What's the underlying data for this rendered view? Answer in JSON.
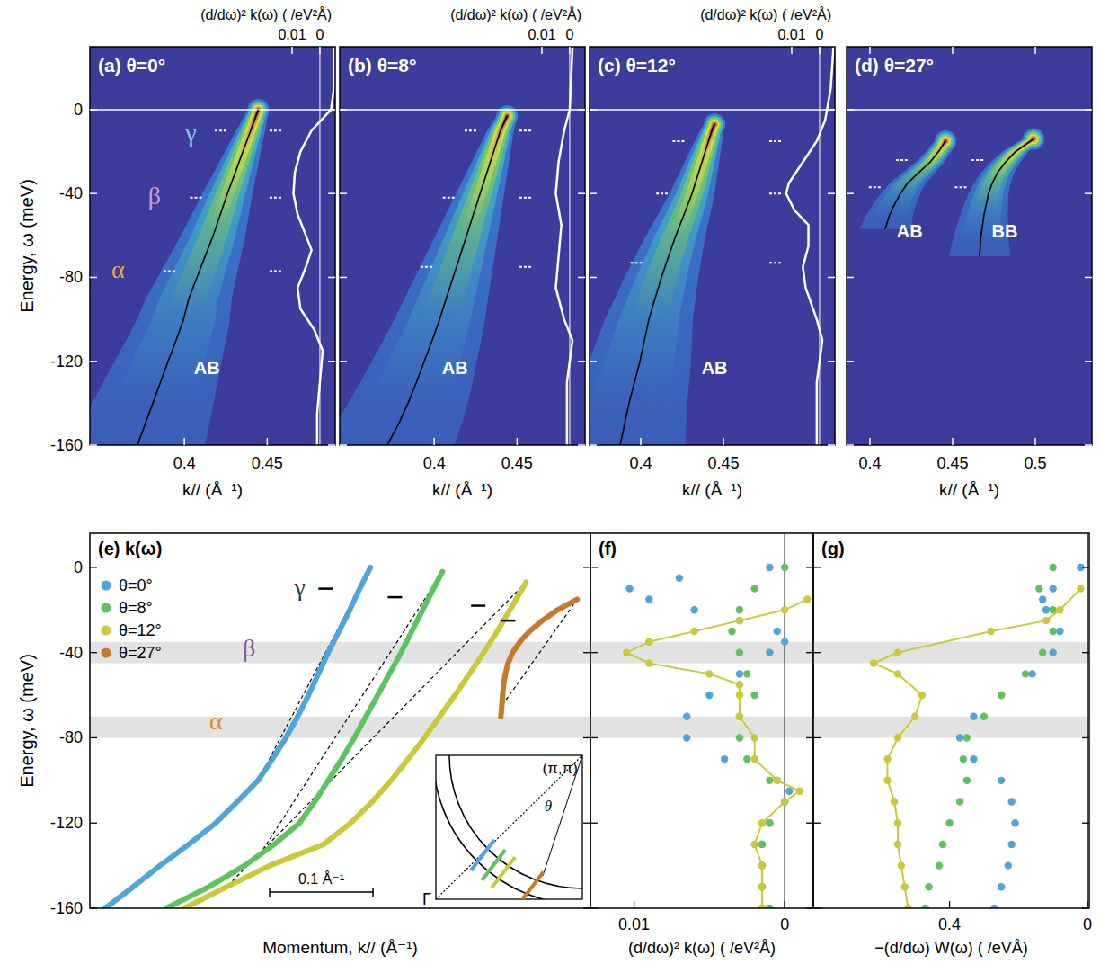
{
  "chart_data": [
    {
      "type": "heatmap",
      "title": "(a)  θ=0°",
      "x_label": "k// (Å⁻¹)",
      "y_label": "Energy, ω (meV)",
      "x2_label": "(d/dω)² k(ω)  ( /eV²Å)",
      "xlim": [
        0.343,
        0.491
      ],
      "xticks": [
        0.4,
        0.45
      ],
      "ylim": [
        -160,
        30
      ],
      "yticks": [
        0,
        -40,
        -80,
        -120,
        -160
      ],
      "x2lim": [
        0.0826,
        -0.0055
      ],
      "x2ticks": [
        0.01,
        0
      ],
      "dash_energies": [
        -10,
        -42,
        -77
      ],
      "series": [
        {
          "type": "line",
          "color": "#000000",
          "x": [
            0.4446,
            0.44,
            0.4353,
            0.4307,
            0.426,
            0.4217,
            0.4174,
            0.4125,
            0.4076,
            0.4027,
            0.3995,
            0.395,
            0.3902,
            0.3856,
            0.381,
            0.3763,
            0.3717
          ],
          "values": [
            0,
            -10,
            -20,
            -30,
            -40,
            -50,
            -60,
            -70,
            -80,
            -90,
            -100,
            -110,
            -120,
            -130,
            -140,
            -150,
            -160
          ]
        },
        {
          "type": "line",
          "axis": "x2",
          "color": "#ffffff",
          "x": [
            -0.005,
            -0.005,
            -0.004,
            0.003,
            0.007,
            0.009,
            0.0095,
            0.008,
            0.005,
            0.003,
            0.005,
            0.008,
            0.007,
            0.002,
            -0.001,
            0.0,
            0.001,
            0.001
          ],
          "values": [
            30,
            10,
            0,
            -10,
            -20,
            -30,
            -40,
            -50,
            -60,
            -67,
            -75,
            -85,
            -95,
            -105,
            -115,
            -130,
            -145,
            -160
          ]
        }
      ],
      "annotations": [
        {
          "text": "γ",
          "x": 0.404,
          "y": -11,
          "color": "#8fc5e6"
        },
        {
          "text": "β",
          "x": 0.382,
          "y": -41,
          "color": "#c7a0dc"
        },
        {
          "text": "α",
          "x": 0.36,
          "y": -76,
          "color": "#e8a73c"
        },
        {
          "text": "AB",
          "x": 0.4136,
          "y": -123,
          "color": "#ffffff"
        }
      ]
    },
    {
      "type": "heatmap",
      "title": "(b)  θ=8°",
      "x_label": "k// (Å⁻¹)",
      "x2_label": "(d/dω)² k(ω)  ( /eV²Å)",
      "tick_labels": "x",
      "xlim": [
        0.343,
        0.491
      ],
      "xticks": [
        0.4,
        0.45
      ],
      "ylim": [
        -160,
        30
      ],
      "yticks": [
        0,
        -40,
        -80,
        -120,
        -160
      ],
      "x2lim": [
        0.0826,
        -0.0055
      ],
      "x2ticks": [
        0.01,
        0
      ],
      "dash_energies": [
        -10,
        -42,
        -75
      ],
      "series": [
        {
          "type": "line",
          "color": "#000000",
          "x": [
            0.444,
            0.44,
            0.4359,
            0.4318,
            0.4277,
            0.4236,
            0.4196,
            0.4155,
            0.4114,
            0.4073,
            0.4033,
            0.3988,
            0.394,
            0.3893,
            0.3842,
            0.3785,
            0.3717
          ],
          "values": [
            -3,
            -10,
            -20,
            -30,
            -40,
            -50,
            -60,
            -70,
            -80,
            -90,
            -100,
            -110,
            -120,
            -130,
            -140,
            -150,
            -160
          ]
        },
        {
          "type": "line",
          "axis": "x2",
          "color": "#ffffff",
          "x": [
            -0.001,
            0.0,
            0.002,
            0.004,
            0.005,
            0.003,
            0.004,
            0.005,
            0.002,
            -0.001,
            0.001,
            0.001
          ],
          "values": [
            30,
            0,
            -10,
            -25,
            -40,
            -55,
            -70,
            -85,
            -100,
            -110,
            -130,
            -160
          ]
        }
      ],
      "annotations": [
        {
          "text": "AB",
          "x": 0.4125,
          "y": -123,
          "color": "#ffffff"
        }
      ]
    },
    {
      "type": "heatmap",
      "title": "(c)  θ=12°",
      "x_label": "k// (Å⁻¹)",
      "x2_label": "(d/dω)² k(ω)  ( /eV²Å)",
      "tick_labels": "x",
      "xlim": [
        0.369,
        0.5174
      ],
      "xticks": [
        0.4,
        0.45
      ],
      "ylim": [
        -160,
        30
      ],
      "yticks": [
        0,
        -40,
        -80,
        -120,
        -160
      ],
      "x2lim": [
        0.0826,
        -0.0055
      ],
      "x2ticks": [
        0.01,
        0
      ],
      "dash_energies": [
        -15,
        -40,
        -73
      ],
      "series": [
        {
          "type": "line",
          "color": "#000000",
          "x": [
            0.4446,
            0.443,
            0.439,
            0.435,
            0.431,
            0.4262,
            0.4212,
            0.4168,
            0.4125,
            0.4087,
            0.4049,
            0.4022,
            0.3995,
            0.3962,
            0.3929,
            0.3902,
            0.3875
          ],
          "values": [
            -7,
            -10,
            -20,
            -30,
            -40,
            -50,
            -60,
            -70,
            -80,
            -90,
            -100,
            -110,
            -120,
            -130,
            -140,
            -150,
            -160
          ]
        },
        {
          "type": "line",
          "axis": "x2",
          "color": "#ffffff",
          "x": [
            -0.005,
            -0.004,
            -0.002,
            0.001,
            0.006,
            0.011,
            0.012,
            0.009,
            0.004,
            0.004,
            0.006,
            0.005,
            0.001,
            -0.001,
            0.001,
            0.001
          ],
          "values": [
            30,
            10,
            -5,
            -15,
            -25,
            -35,
            -40,
            -48,
            -55,
            -65,
            -75,
            -85,
            -100,
            -110,
            -130,
            -160
          ]
        }
      ],
      "annotations": [
        {
          "text": "AB",
          "x": 0.4446,
          "y": -123,
          "color": "#ffffff"
        }
      ]
    },
    {
      "type": "heatmap",
      "title": "(d)  θ=27°",
      "x_label": "k// (Å⁻¹)",
      "tick_labels": "x",
      "xlim": [
        0.3859,
        0.5342
      ],
      "xticks": [
        0.4,
        0.45,
        0.5
      ],
      "ylim": [
        -160,
        30
      ],
      "yticks": [
        0,
        -40,
        -80,
        -120,
        -160
      ],
      "dash_energies": [
        -24,
        -37
      ],
      "series": [
        {
          "type": "line",
          "color": "#000000",
          "x": [
            0.4457,
            0.4415,
            0.4364,
            0.4296,
            0.4228,
            0.4185,
            0.415,
            0.412,
            0.41,
            0.409
          ],
          "values": [
            -15,
            -20,
            -25,
            -30,
            -35,
            -40,
            -45,
            -50,
            -55,
            -57
          ]
        },
        {
          "type": "line",
          "color": "#000000",
          "x": [
            0.4989,
            0.488,
            0.482,
            0.4772,
            0.474,
            0.4717,
            0.469,
            0.4672,
            0.4663
          ],
          "values": [
            -14,
            -20,
            -25,
            -30,
            -35,
            -40,
            -50,
            -60,
            -70
          ]
        }
      ],
      "annotations": [
        {
          "text": "AB",
          "x": 0.424,
          "y": -58,
          "color": "#ffffff"
        },
        {
          "text": "BB",
          "x": 0.4815,
          "y": -58,
          "color": "#ffffff"
        }
      ]
    },
    {
      "type": "line",
      "title": "(e)  k(ω)",
      "x_label": "Momentum, k// (Å⁻¹)",
      "y_label": "Energy, ω (meV)",
      "tick_labels": "y",
      "legend": "upper left",
      "xlim": [
        0,
        0.484
      ],
      "ylim": [
        -160,
        16
      ],
      "yticks": [
        0,
        -40,
        -80,
        -120,
        -160
      ],
      "shaded_bands": [
        [
          -35,
          -45
        ],
        [
          -70,
          -80
        ]
      ],
      "series": [
        {
          "name": "θ=0°",
          "color": "#4ea5dc",
          "linear_to": -100,
          "gamma_marker": -10,
          "x": [
            0.2713,
            0.2609,
            0.2513,
            0.2409,
            0.2304,
            0.2209,
            0.2113,
            0.2009,
            0.1896,
            0.1765,
            0.1626,
            0.1426,
            0.1217,
            0.0957,
            0.0678,
            0.0417,
            0.0148
          ],
          "values": [
            0,
            -10,
            -20,
            -30,
            -40,
            -50,
            -60,
            -70,
            -80,
            -90,
            -100,
            -110,
            -120,
            -130,
            -140,
            -150,
            -160
          ]
        },
        {
          "name": "θ=8°",
          "color": "#5ec25e",
          "linear_to": -135,
          "gamma_marker": -14,
          "x": [
            0.3409,
            0.3322,
            0.3217,
            0.3113,
            0.3009,
            0.2896,
            0.2783,
            0.267,
            0.2557,
            0.2435,
            0.2304,
            0.2174,
            0.2026,
            0.1783,
            0.1496,
            0.1148,
            0.0739
          ],
          "values": [
            -2,
            -10,
            -20,
            -30,
            -40,
            -50,
            -60,
            -70,
            -80,
            -90,
            -100,
            -110,
            -120,
            -130,
            -140,
            -150,
            -160
          ]
        },
        {
          "name": "θ=12°",
          "color": "#c9c93a",
          "linear_to": -150,
          "gamma_marker": -18,
          "x": [
            0.4217,
            0.4183,
            0.4061,
            0.3939,
            0.3809,
            0.367,
            0.353,
            0.3383,
            0.3235,
            0.3078,
            0.2913,
            0.273,
            0.2522,
            0.2261,
            0.1739,
            0.1322,
            0.0913
          ],
          "values": [
            -7,
            -10,
            -20,
            -30,
            -40,
            -50,
            -60,
            -70,
            -80,
            -90,
            -100,
            -110,
            -120,
            -130,
            -140,
            -150,
            -160
          ]
        },
        {
          "name": "θ=27°",
          "color": "#c8782a",
          "linear_to": -65,
          "gamma_marker": -25,
          "x": [
            0.4713,
            0.4522,
            0.4374,
            0.4252,
            0.4157,
            0.4087,
            0.4043,
            0.4017,
            0.4,
            0.3991,
            0.3983,
            0.3974
          ],
          "values": [
            -15,
            -20,
            -25,
            -30,
            -35,
            -40,
            -45,
            -50,
            -55,
            -60,
            -65,
            -70
          ]
        }
      ],
      "annotations": [
        {
          "text": "γ",
          "x": 0.203,
          "y": -9,
          "color": "#23405e"
        },
        {
          "text": "β",
          "x": 0.154,
          "y": -38,
          "color": "#8a5aa6"
        },
        {
          "text": "α",
          "x": 0.122,
          "y": -72,
          "color": "#d0922a"
        }
      ],
      "scale_bar": {
        "value": 0.1,
        "label": "0.1 Å⁻¹"
      },
      "inset": {
        "labels": [
          "(π,π)",
          "θ",
          "Γ"
        ]
      }
    },
    {
      "type": "scatter",
      "title": "(f)",
      "x_label": "(d/dω)² k(ω)  ( /eV²Å)",
      "tick_labels": "x",
      "xlim": [
        0.0129,
        -0.0019
      ],
      "xticks": [
        0.01,
        0
      ],
      "ylim": [
        -160,
        16
      ],
      "yticks": [
        0,
        -40,
        -80,
        -120,
        -160
      ],
      "shaded_bands": [
        [
          -35,
          -45
        ],
        [
          -70,
          -80
        ]
      ],
      "series": [
        {
          "color": "#4ea5dc",
          "marker": "circle",
          "x": [
            0.001,
            0.007,
            0.0103,
            0.009,
            0.006,
            0.003,
            0.0005,
            0.0,
            0.001,
            0.003,
            0.005,
            0.0065,
            0.0065,
            0.004,
            0.0005,
            -0.0003,
            0.0,
            0.001,
            0.0015,
            0.0015,
            0.0015,
            0.0015
          ],
          "values": [
            0,
            -5,
            -10,
            -15,
            -20,
            -25,
            -30,
            -35,
            -40,
            -50,
            -60,
            -70,
            -80,
            -90,
            -100,
            -105,
            -110,
            -120,
            -130,
            -140,
            -150,
            -160
          ]
        },
        {
          "color": "#5ec25e",
          "marker": "circle",
          "x": [
            0.0,
            0.002,
            0.003,
            0.0035,
            0.003,
            0.0025,
            0.002,
            0.003,
            0.003,
            0.0025,
            0.001,
            0.0,
            0.001,
            0.0015,
            0.0015,
            0.0015,
            0.001
          ],
          "values": [
            0,
            -10,
            -20,
            -30,
            -40,
            -50,
            -60,
            -70,
            -80,
            -90,
            -100,
            -110,
            -120,
            -130,
            -140,
            -150,
            -160
          ]
        },
        {
          "color": "#c9c93a",
          "marker": "circle",
          "line_style": "solid",
          "x": [
            -0.0015,
            0.0,
            0.003,
            0.006,
            0.009,
            0.0105,
            0.009,
            0.005,
            0.003,
            0.003,
            0.003,
            0.002,
            0.002,
            0.0005,
            -0.001,
            0.0,
            0.0015,
            0.002,
            0.0015,
            0.0015,
            0.0015
          ],
          "values": [
            -15,
            -20,
            -25,
            -30,
            -35,
            -40,
            -45,
            -50,
            -55,
            -60,
            -70,
            -80,
            -90,
            -100,
            -105,
            -110,
            -120,
            -130,
            -140,
            -150,
            -160
          ]
        }
      ]
    },
    {
      "type": "scatter",
      "title": "(g)",
      "x_label": "−(d/dω) W(ω)  ( /eVÅ)",
      "tick_labels": "x",
      "xlim": [
        0.795,
        -0.005
      ],
      "xticks": [
        0.4,
        0
      ],
      "ylim": [
        -160,
        16
      ],
      "yticks": [
        0,
        -40,
        -80,
        -120,
        -160
      ],
      "shaded_bands": [
        [
          -35,
          -45
        ],
        [
          -70,
          -80
        ]
      ],
      "series": [
        {
          "color": "#4ea5dc",
          "marker": "circle",
          "x": [
            0.02,
            0.1,
            0.13,
            0.12,
            0.08,
            0.1,
            0.16,
            0.25,
            0.33,
            0.37,
            0.33,
            0.25,
            0.22,
            0.21,
            0.22,
            0.23,
            0.25,
            0.27
          ],
          "values": [
            0,
            -10,
            -15,
            -20,
            -30,
            -40,
            -50,
            -60,
            -70,
            -80,
            -90,
            -100,
            -110,
            -120,
            -130,
            -140,
            -150,
            -160
          ]
        },
        {
          "color": "#5ec25e",
          "marker": "circle",
          "x": [
            0.1,
            0.14,
            0.1,
            0.1,
            0.13,
            0.18,
            0.25,
            0.3,
            0.35,
            0.36,
            0.35,
            0.37,
            0.4,
            0.42,
            0.43,
            0.46,
            0.47
          ],
          "values": [
            0,
            -10,
            -20,
            -30,
            -40,
            -50,
            -60,
            -70,
            -80,
            -90,
            -100,
            -110,
            -120,
            -130,
            -140,
            -150,
            -160
          ]
        },
        {
          "color": "#c9c93a",
          "marker": "circle",
          "line_style": "solid",
          "x": [
            0.02,
            0.08,
            0.12,
            0.28,
            0.55,
            0.62,
            0.55,
            0.48,
            0.5,
            0.55,
            0.58,
            0.58,
            0.56,
            0.55,
            0.55,
            0.54,
            0.53,
            0.52
          ],
          "values": [
            -10,
            -20,
            -25,
            -30,
            -40,
            -45,
            -50,
            -60,
            -70,
            -80,
            -90,
            -100,
            -110,
            -120,
            -130,
            -140,
            -150,
            -160
          ]
        }
      ]
    }
  ]
}
